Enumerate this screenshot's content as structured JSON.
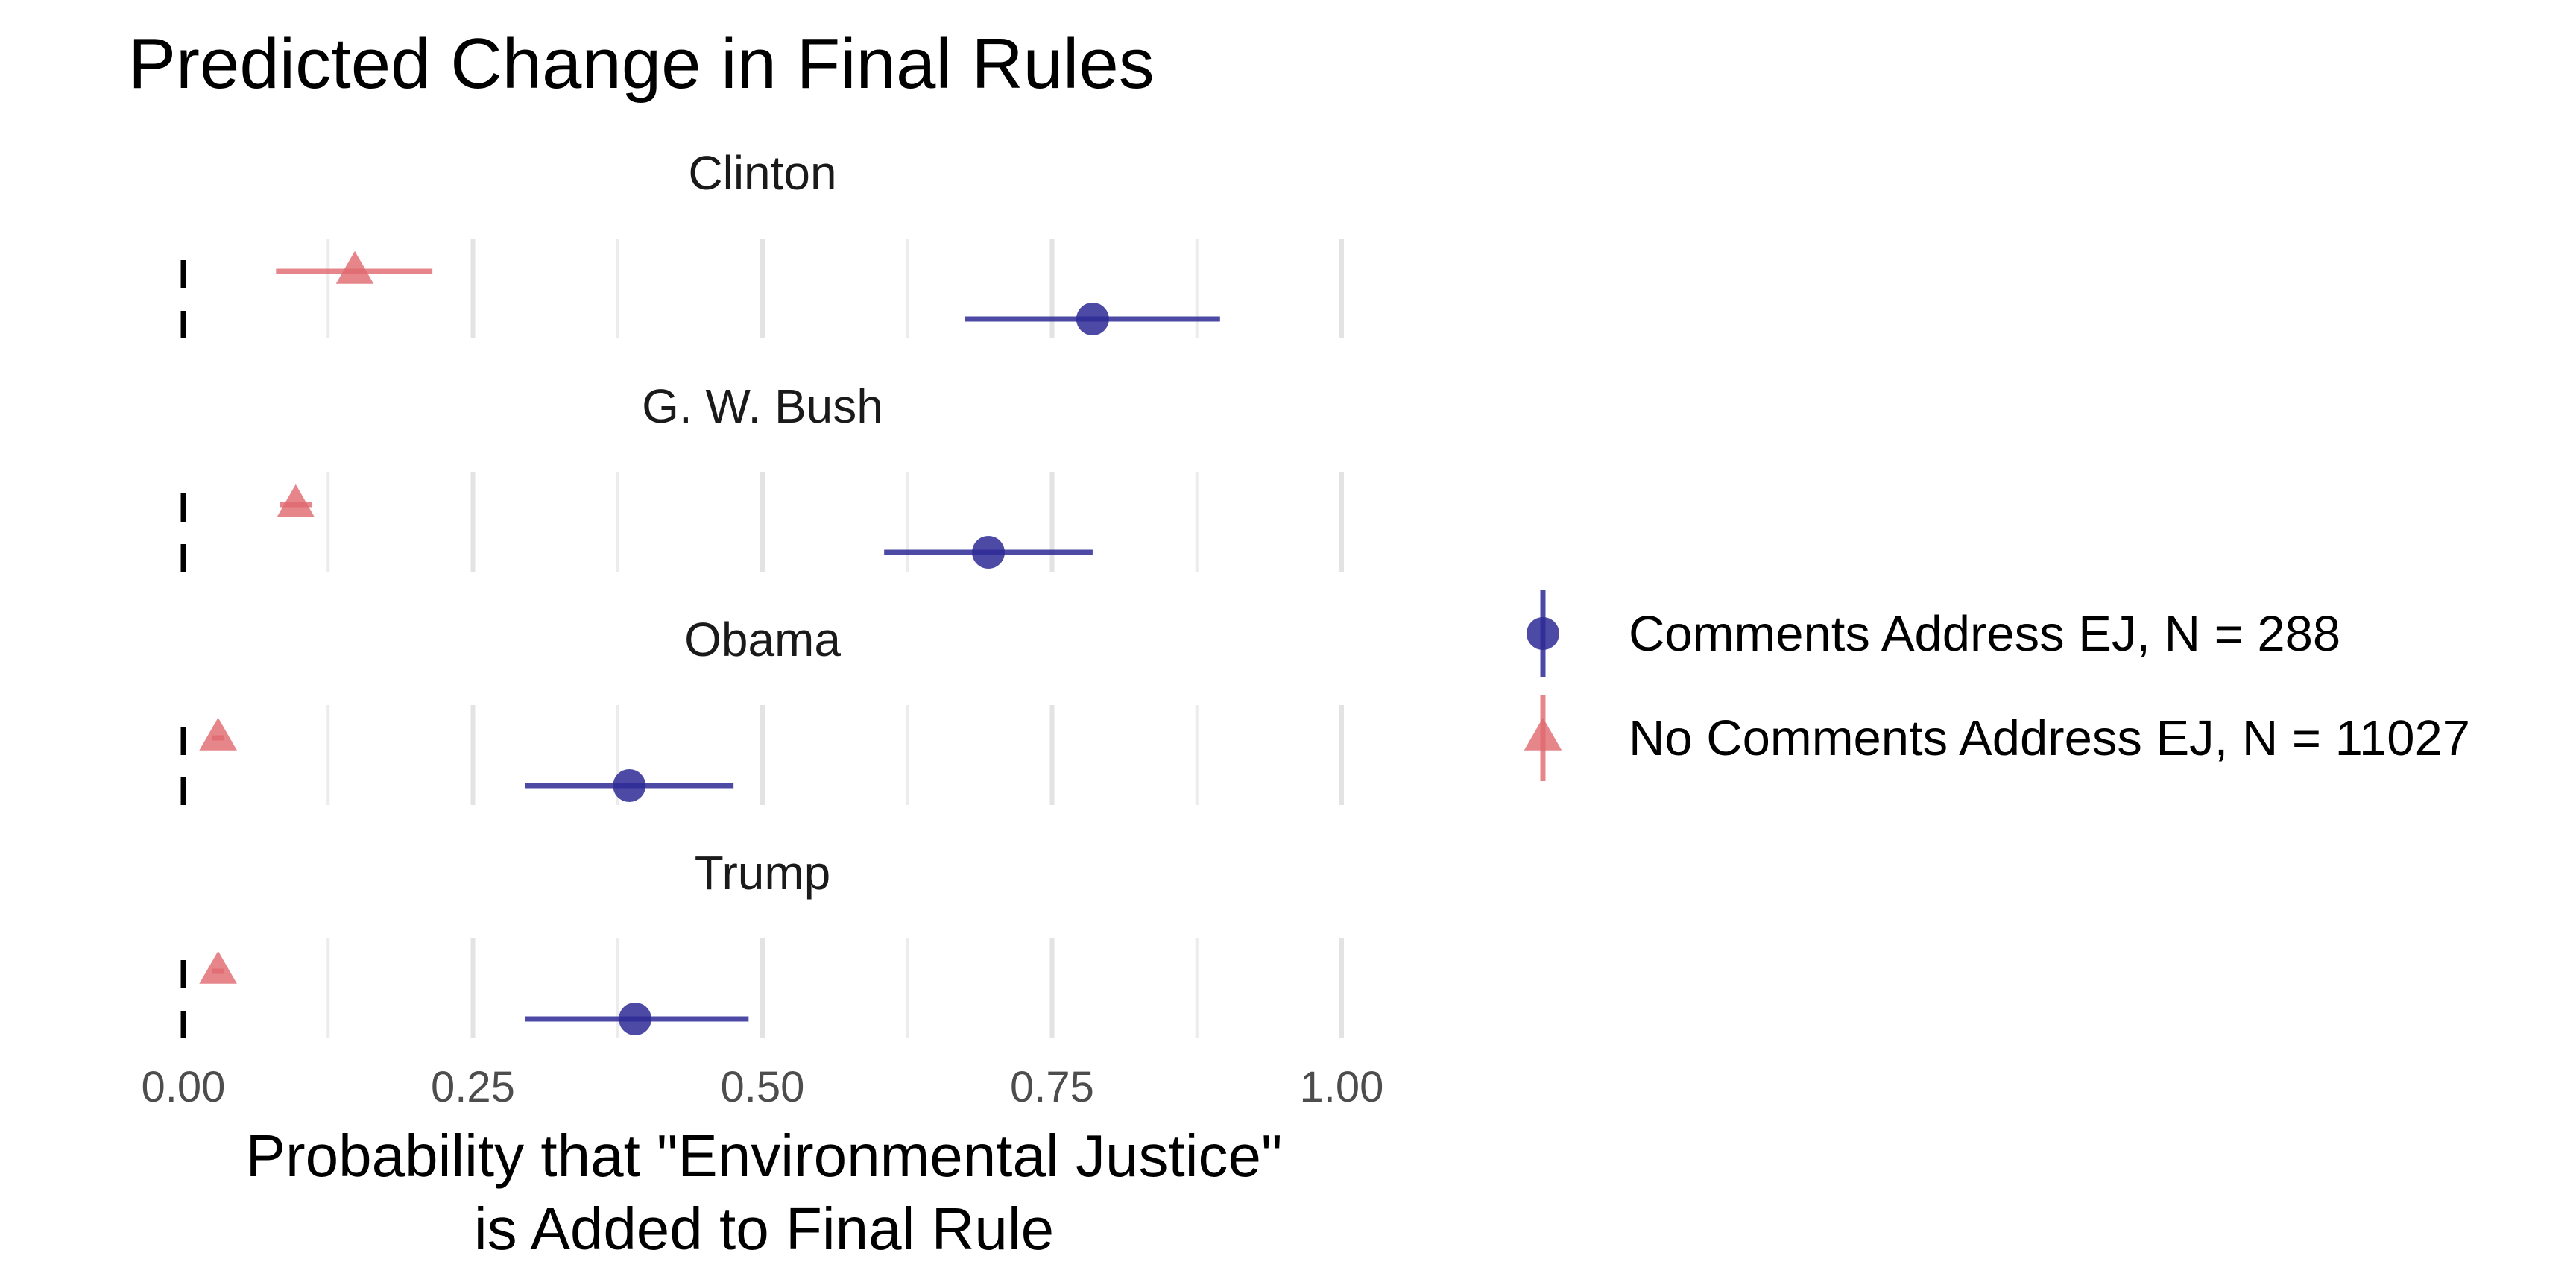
{
  "chart_data": {
    "type": "scatter",
    "title": "Predicted Change in Final Rules",
    "xlabel": [
      "Probability that \"Environmental Justice\"",
      "is Added to Final Rule"
    ],
    "ylabel": "",
    "xlim": [
      0,
      1
    ],
    "x_ticks": [
      "0.00",
      "0.25",
      "0.50",
      "0.75",
      "1.00"
    ],
    "reference_line": {
      "x": 0,
      "style": "dashed",
      "color": "#000000"
    },
    "grid": true,
    "facets": [
      "Clinton",
      "G. W. Bush",
      "Obama",
      "Trump"
    ],
    "legend_position": "right",
    "series": [
      {
        "name": "Comments Address EJ, N = 288",
        "color": "#2e2a96",
        "marker": "circle",
        "points": [
          {
            "facet": "Clinton",
            "estimate": 0.785,
            "low": 0.675,
            "high": 0.895
          },
          {
            "facet": "G. W. Bush",
            "estimate": 0.695,
            "low": 0.605,
            "high": 0.785
          },
          {
            "facet": "Obama",
            "estimate": 0.385,
            "low": 0.295,
            "high": 0.475
          },
          {
            "facet": "Trump",
            "estimate": 0.39,
            "low": 0.295,
            "high": 0.488
          }
        ]
      },
      {
        "name": "No Comments Address EJ, N = 11027",
        "color": "#e0686e",
        "marker": "triangle",
        "points": [
          {
            "facet": "Clinton",
            "estimate": 0.148,
            "low": 0.08,
            "high": 0.215
          },
          {
            "facet": "G. W. Bush",
            "estimate": 0.097,
            "low": 0.083,
            "high": 0.111
          },
          {
            "facet": "Obama",
            "estimate": 0.03,
            "low": 0.025,
            "high": 0.035
          },
          {
            "facet": "Trump",
            "estimate": 0.03,
            "low": 0.025,
            "high": 0.035
          }
        ]
      }
    ]
  }
}
